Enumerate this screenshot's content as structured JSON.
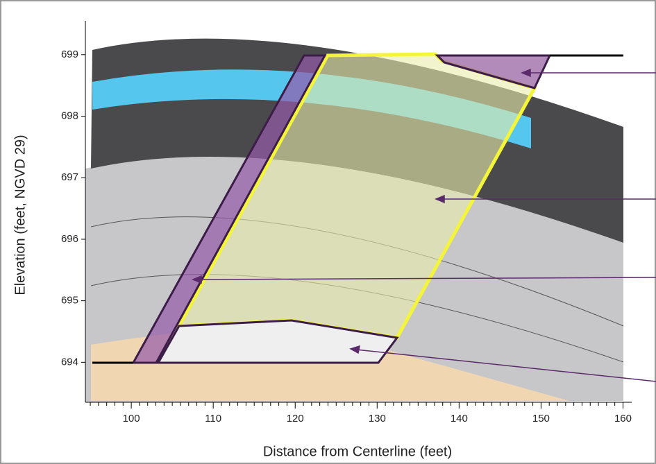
{
  "chart_data": {
    "type": "cross-section",
    "xlabel": "Distance from Centerline (feet)",
    "ylabel": "Elevation (feet, NGVD 29)",
    "xlim": [
      94.4,
      160.3
    ],
    "ylim": [
      693.35,
      699.55
    ],
    "xticks": [
      100,
      110,
      120,
      130,
      140,
      150,
      160
    ],
    "yticks": [
      694,
      695,
      696,
      697,
      698,
      699
    ]
  }
}
